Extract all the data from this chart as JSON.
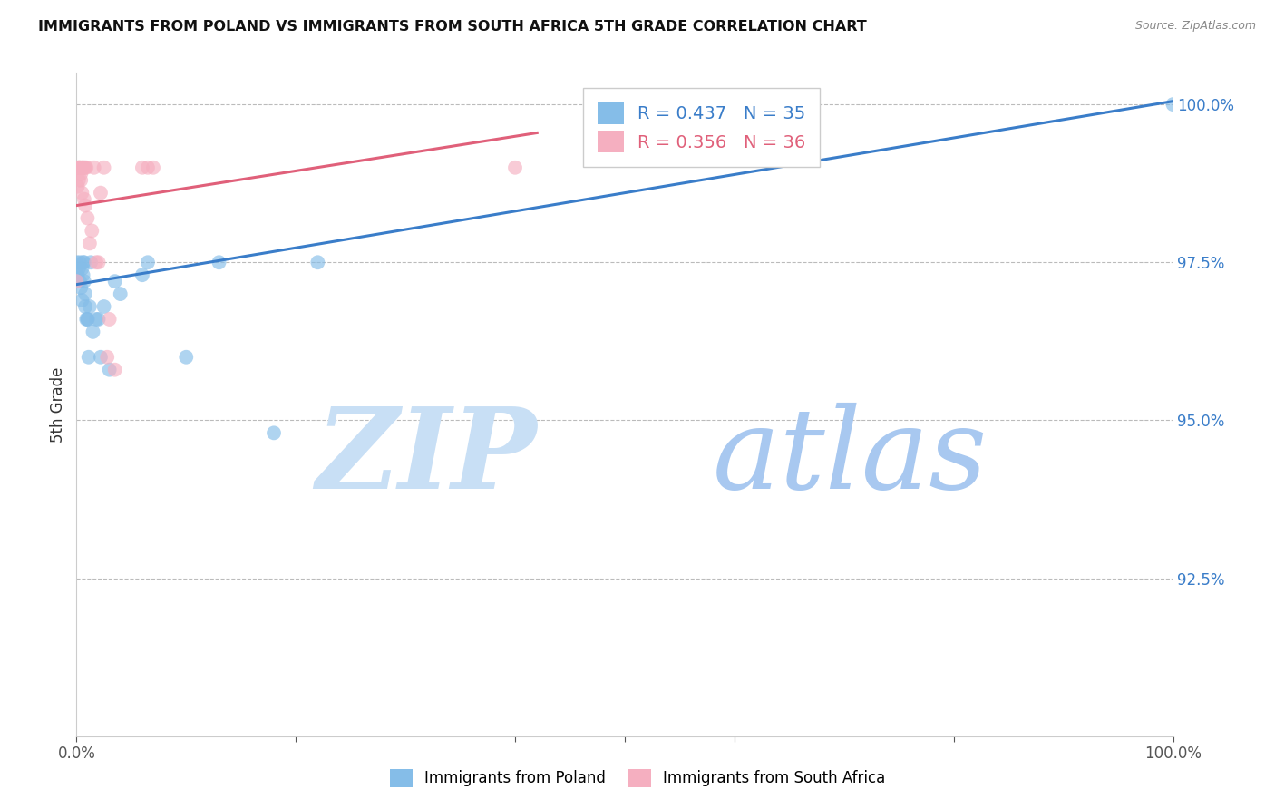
{
  "title": "IMMIGRANTS FROM POLAND VS IMMIGRANTS FROM SOUTH AFRICA 5TH GRADE CORRELATION CHART",
  "source": "Source: ZipAtlas.com",
  "ylabel": "5th Grade",
  "x_min": 0.0,
  "x_max": 1.0,
  "y_min": 0.9,
  "y_max": 1.005,
  "ytick_labels": [
    "92.5%",
    "95.0%",
    "97.5%",
    "100.0%"
  ],
  "ytick_values": [
    0.925,
    0.95,
    0.975,
    1.0
  ],
  "blue_color": "#85bde8",
  "pink_color": "#f5afc0",
  "blue_line_color": "#3a7dc9",
  "pink_line_color": "#e0607a",
  "watermark_zip_color": "#c8dff5",
  "watermark_atlas_color": "#a8c8f0",
  "poland_x": [
    0.0,
    0.001,
    0.002,
    0.003,
    0.003,
    0.004,
    0.005,
    0.005,
    0.006,
    0.006,
    0.007,
    0.007,
    0.008,
    0.008,
    0.009,
    0.01,
    0.01,
    0.011,
    0.012,
    0.013,
    0.015,
    0.018,
    0.02,
    0.022,
    0.025,
    0.03,
    0.035,
    0.04,
    0.06,
    0.065,
    0.1,
    0.13,
    0.18,
    0.22,
    1.0
  ],
  "poland_y": [
    0.975,
    0.973,
    0.974,
    0.972,
    0.975,
    0.971,
    0.974,
    0.969,
    0.975,
    0.973,
    0.972,
    0.975,
    0.968,
    0.97,
    0.966,
    0.966,
    0.966,
    0.96,
    0.968,
    0.975,
    0.964,
    0.966,
    0.966,
    0.96,
    0.968,
    0.958,
    0.972,
    0.97,
    0.973,
    0.975,
    0.96,
    0.975,
    0.948,
    0.975,
    1.0
  ],
  "sa_x": [
    0.0,
    0.001,
    0.001,
    0.002,
    0.002,
    0.002,
    0.003,
    0.003,
    0.003,
    0.004,
    0.004,
    0.005,
    0.005,
    0.005,
    0.006,
    0.006,
    0.007,
    0.007,
    0.008,
    0.008,
    0.009,
    0.01,
    0.012,
    0.014,
    0.016,
    0.018,
    0.02,
    0.022,
    0.025,
    0.028,
    0.03,
    0.035,
    0.06,
    0.065,
    0.07,
    0.4
  ],
  "sa_y": [
    0.972,
    0.99,
    0.987,
    0.99,
    0.99,
    0.988,
    0.99,
    0.99,
    0.99,
    0.989,
    0.988,
    0.99,
    0.99,
    0.986,
    0.99,
    0.99,
    0.99,
    0.985,
    0.99,
    0.984,
    0.99,
    0.982,
    0.978,
    0.98,
    0.99,
    0.975,
    0.975,
    0.986,
    0.99,
    0.96,
    0.966,
    0.958,
    0.99,
    0.99,
    0.99,
    0.99
  ],
  "poland_line_x0": 0.0,
  "poland_line_x1": 1.0,
  "poland_line_y0": 0.9715,
  "poland_line_y1": 1.0005,
  "sa_line_x0": 0.0,
  "sa_line_x1": 0.42,
  "sa_line_y0": 0.984,
  "sa_line_y1": 0.9955
}
